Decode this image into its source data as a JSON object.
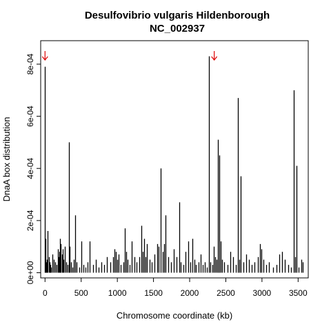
{
  "chart_data": {
    "type": "bar",
    "title_line1": "Desulfovibrio vulgaris Hildenborough",
    "title_line2": "NC_002937",
    "xlabel": "Chromosome coordinate (kb)",
    "ylabel": "DnaA box distribution",
    "xlim": [
      -60,
      3640
    ],
    "ylim": [
      -2e-05,
      0.00089
    ],
    "x_ticks": [
      0,
      500,
      1000,
      1500,
      2000,
      2500,
      3000,
      3500
    ],
    "x_tick_labels": [
      "0",
      "500",
      "1000",
      "1500",
      "2000",
      "2500",
      "3000",
      "3500"
    ],
    "y_ticks": [
      0,
      0.0002,
      0.0004,
      0.0006,
      0.0008
    ],
    "y_tick_labels": [
      "0e+00",
      "2e-04",
      "4e-04",
      "6e-04",
      "8e-04"
    ],
    "grid": false,
    "arrow_color": "#dd0000",
    "arrow_positions_kb": [
      0,
      2340
    ],
    "bar_color": "#000000",
    "x": [
      0,
      5,
      12,
      20,
      28,
      35,
      50,
      60,
      72,
      85,
      100,
      120,
      140,
      160,
      175,
      190,
      200,
      210,
      220,
      232,
      245,
      258,
      272,
      290,
      310,
      330,
      345,
      360,
      380,
      400,
      420,
      440,
      470,
      500,
      530,
      560,
      590,
      620,
      660,
      700,
      740,
      780,
      820,
      860,
      900,
      940,
      960,
      980,
      1000,
      1020,
      1050,
      1080,
      1100,
      1120,
      1140,
      1170,
      1200,
      1240,
      1270,
      1300,
      1330,
      1350,
      1370,
      1390,
      1410,
      1450,
      1480,
      1510,
      1550,
      1575,
      1600,
      1630,
      1650,
      1670,
      1700,
      1740,
      1780,
      1820,
      1860,
      1880,
      1910,
      1940,
      1980,
      2010,
      2040,
      2070,
      2090,
      2120,
      2150,
      2180,
      2210,
      2240,
      2270,
      2290,
      2310,
      2330,
      2350,
      2370,
      2390,
      2410,
      2430,
      2450,
      2480,
      2520,
      2560,
      2600,
      2640,
      2670,
      2690,
      2710,
      2740,
      2780,
      2820,
      2860,
      2900,
      2940,
      2970,
      2990,
      3020,
      3060,
      3100,
      3150,
      3200,
      3240,
      3280,
      3320,
      3360,
      3400,
      3440,
      3460,
      3480,
      3510,
      3540,
      3560
    ],
    "values": [
      0.00079,
      0.00013,
      4e-05,
      2e-05,
      5e-05,
      0.00016,
      6e-05,
      4e-05,
      3e-05,
      2e-05,
      7e-05,
      5e-05,
      4e-05,
      3e-05,
      9e-05,
      6e-05,
      8e-05,
      0.00013,
      0.00011,
      7e-05,
      9e-05,
      5e-05,
      0.0001,
      4e-05,
      3e-05,
      0.0005,
      0.0001,
      4e-05,
      2e-05,
      5e-05,
      0.00022,
      4e-05,
      2e-05,
      0.00012,
      3e-05,
      2e-05,
      4e-05,
      0.00012,
      3e-05,
      5e-05,
      2e-05,
      4e-05,
      3e-05,
      6e-05,
      4e-05,
      6e-05,
      9e-05,
      8e-05,
      5e-05,
      7e-05,
      3e-05,
      4e-05,
      0.00017,
      8e-05,
      5e-05,
      3e-05,
      0.00012,
      6e-05,
      4e-05,
      6e-05,
      0.00018,
      8e-05,
      0.00013,
      6e-05,
      0.00011,
      5e-05,
      4e-05,
      7e-05,
      0.00011,
      0.0001,
      0.0004,
      8e-05,
      0.00011,
      0.00022,
      6e-05,
      4e-05,
      9e-05,
      6e-05,
      0.00027,
      4e-05,
      3e-05,
      8e-05,
      0.00012,
      4e-05,
      0.00013,
      5e-05,
      3e-05,
      4e-05,
      7e-05,
      3e-05,
      4e-05,
      2e-05,
      0.00083,
      4e-05,
      3e-05,
      0.0001,
      6e-05,
      5e-05,
      0.00051,
      0.00045,
      0.00012,
      5e-05,
      4e-05,
      3e-05,
      8e-05,
      6e-05,
      3e-05,
      0.00067,
      5e-05,
      0.00037,
      4e-05,
      7e-05,
      5e-05,
      3e-05,
      4e-05,
      6e-05,
      0.00011,
      9e-05,
      5e-05,
      3e-05,
      4e-05,
      2e-05,
      3e-05,
      7e-05,
      8e-05,
      5e-05,
      3e-05,
      2e-05,
      0.0007,
      6e-05,
      0.00041,
      2e-05,
      5e-05,
      4e-05
    ]
  }
}
